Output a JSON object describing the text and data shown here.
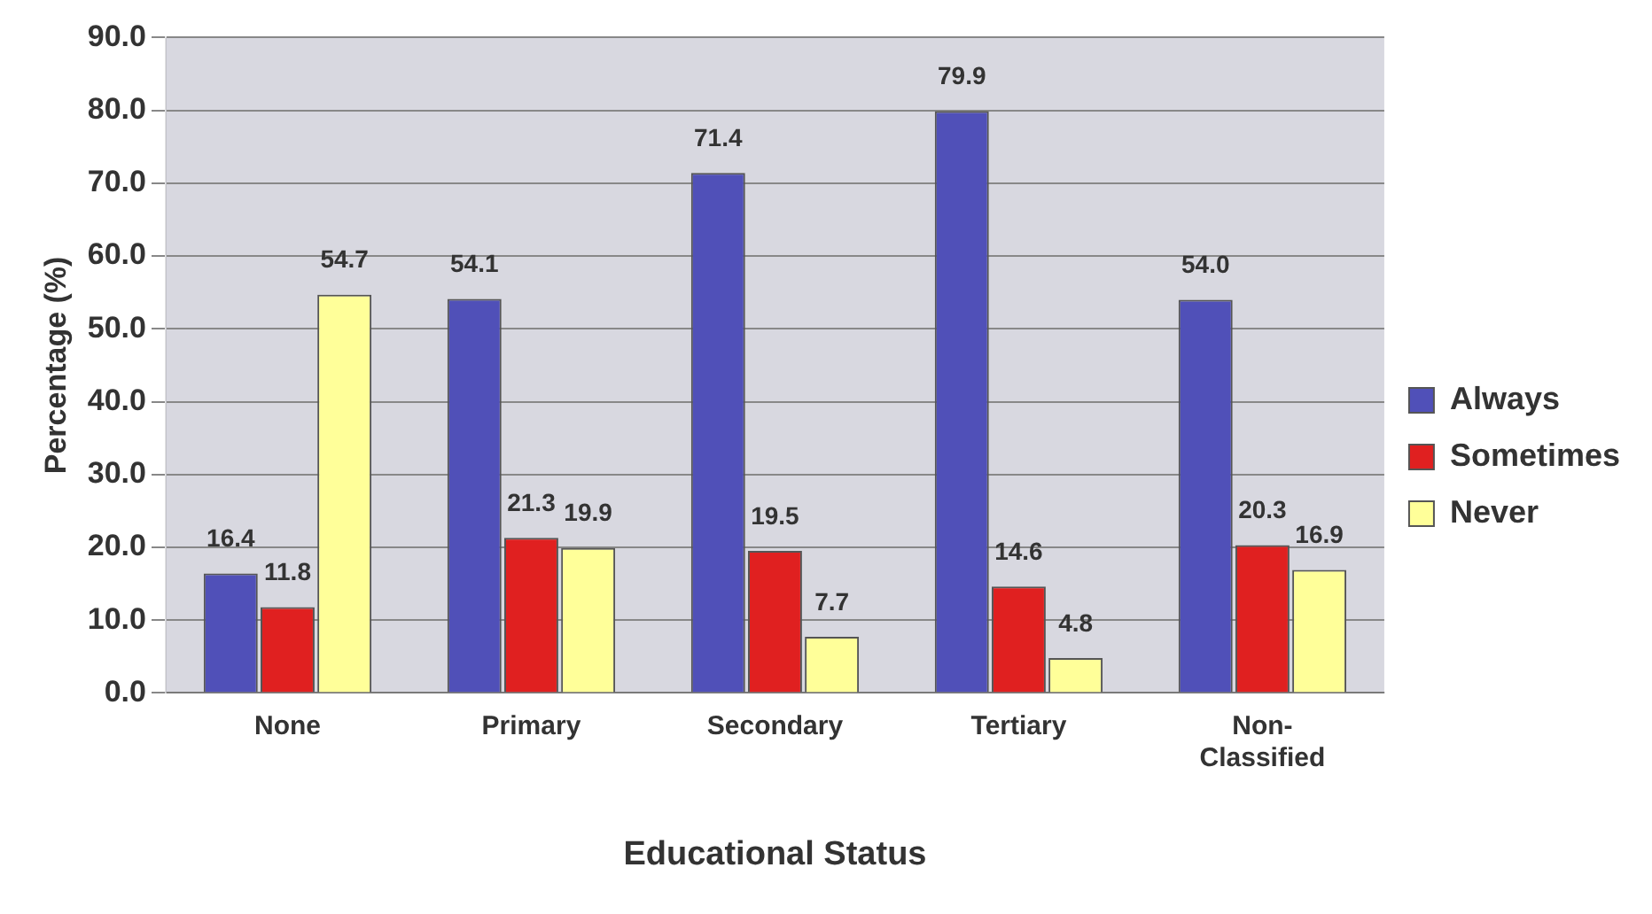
{
  "chart_data": {
    "type": "bar",
    "xlabel": "Educational Status",
    "ylabel": "Percentage (%)",
    "categories": [
      "None",
      "Primary",
      "Secondary",
      "Tertiary",
      "Non-\nClassified"
    ],
    "series": [
      {
        "name": "Always",
        "color": "#5050b8",
        "values": [
          16.4,
          54.1,
          71.4,
          79.9,
          54.0
        ],
        "value_labels": [
          "16.4",
          "54.1",
          "71.4",
          "79.9",
          "54.0"
        ]
      },
      {
        "name": "Sometimes",
        "color": "#e02020",
        "values": [
          11.8,
          21.3,
          19.5,
          14.6,
          20.3
        ],
        "value_labels": [
          "11.8",
          "21.3",
          "19.5",
          "14.6",
          "20.3"
        ]
      },
      {
        "name": "Never",
        "color": "#ffff99",
        "values": [
          54.7,
          19.9,
          7.7,
          4.8,
          16.9
        ],
        "value_labels": [
          "54.7",
          "19.9",
          "7.7",
          "4.8",
          "16.9"
        ]
      }
    ],
    "ylim": [
      0,
      90
    ],
    "yticks": [
      {
        "value": 0,
        "label": "0.0"
      },
      {
        "value": 10,
        "label": "10.0"
      },
      {
        "value": 20,
        "label": "20.0"
      },
      {
        "value": 30,
        "label": "30.0"
      },
      {
        "value": 40,
        "label": "40.0"
      },
      {
        "value": 50,
        "label": "50.0"
      },
      {
        "value": 60,
        "label": "60.0"
      },
      {
        "value": 70,
        "label": "70.0"
      },
      {
        "value": 80,
        "label": "80.0"
      },
      {
        "value": 90,
        "label": "90.0"
      }
    ],
    "grid": "y",
    "legend": "right"
  }
}
